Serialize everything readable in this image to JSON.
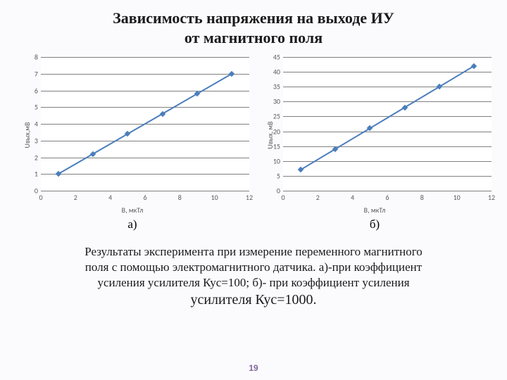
{
  "title_line1": "Зависимость напряжения на выходе ИУ",
  "title_line2": "от магнитного поля",
  "title_fontsize": 22,
  "title_color": "#1a1a1a",
  "chart_a": {
    "type": "line",
    "x": [
      1,
      3,
      5,
      7,
      9,
      11
    ],
    "y": [
      1.0,
      2.2,
      3.4,
      4.6,
      5.8,
      7.0
    ],
    "xlim": [
      0,
      12
    ],
    "ylim": [
      0,
      8
    ],
    "xtick_step": 2,
    "ytick_step": 1,
    "line_color": "#4a7ebb",
    "line_width": 2,
    "marker_color": "#4a7ebb",
    "marker_size": 6,
    "grid_color": "#808080",
    "background_color": "#ffffff",
    "xlabel": "В, мкТл",
    "ylabel": "Uвых,мВ",
    "label_fontsize": 10,
    "tick_fontsize": 10,
    "tick_color": "#595959",
    "sublabel": "а)"
  },
  "chart_b": {
    "type": "line",
    "x": [
      1,
      3,
      5,
      7,
      9,
      11
    ],
    "y": [
      7,
      14,
      21,
      28,
      35,
      42
    ],
    "xlim": [
      0,
      12
    ],
    "ylim": [
      0,
      45
    ],
    "xtick_step": 2,
    "ytick_step": 5,
    "line_color": "#4a7ebb",
    "line_width": 2,
    "marker_color": "#4a7ebb",
    "marker_size": 6,
    "grid_color": "#808080",
    "background_color": "#ffffff",
    "xlabel": "В, мкТл",
    "ylabel": "Uвых, мВ",
    "label_fontsize": 10,
    "tick_fontsize": 10,
    "tick_color": "#595959",
    "sublabel": "б)"
  },
  "caption_line1": "Результаты эксперимента при измерение переменного  магнитного",
  "caption_line2": "поля с помощью электромагнитного датчика. а)-при коэффициент",
  "caption_line3": "усиления усилителя Кус=100; б)- при коэффициент усиления",
  "caption_line4": "усилителя Кус=1000.",
  "caption_fontsize_normal": 17,
  "caption_fontsize_large": 20,
  "caption_color": "#1a1a1a",
  "pagenum": "19",
  "pagenum_color": "#8064a2",
  "pagenum_fontsize": 12,
  "sublabel_fontsize": 17
}
